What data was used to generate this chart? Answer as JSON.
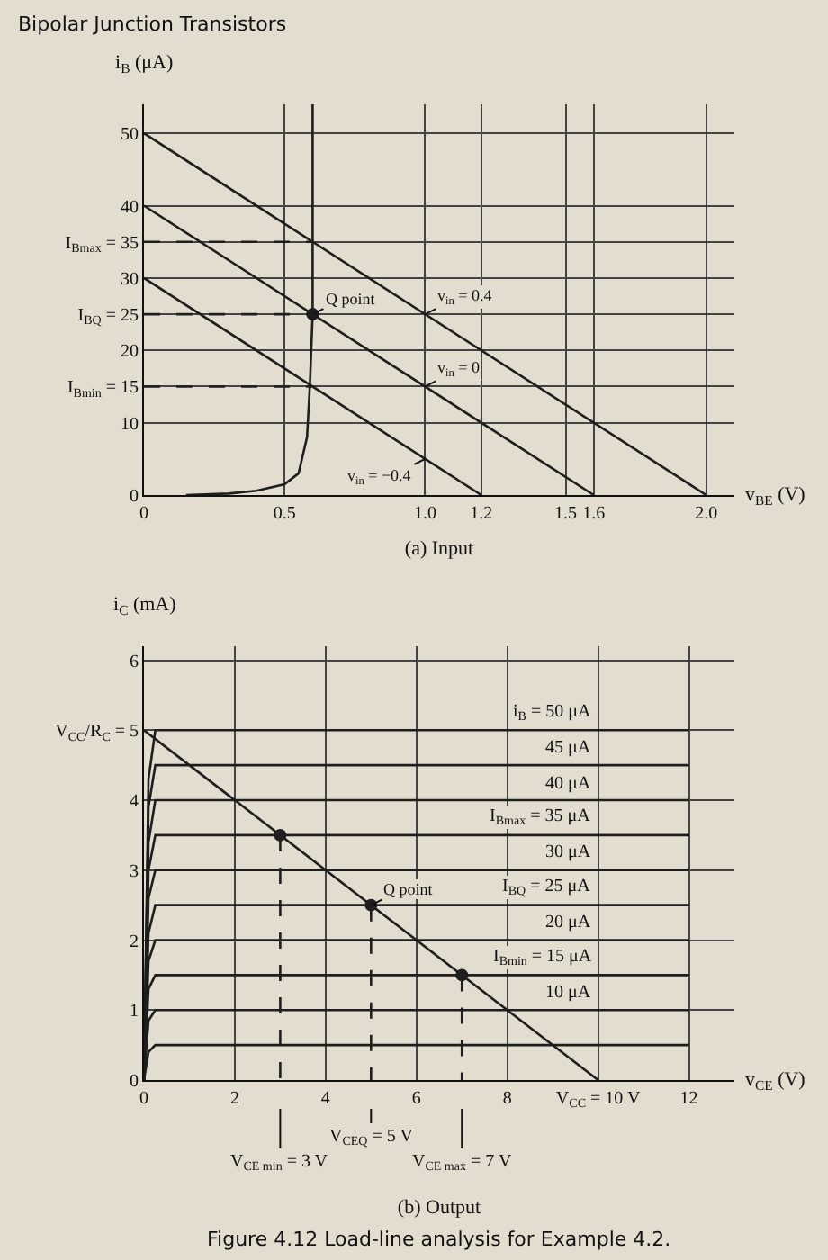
{
  "chart_data": [
    {
      "type": "line",
      "title": "(a) Input",
      "xlabel": "v$_{BE}$ (V)",
      "ylabel": "i$_{B}$ (μA)",
      "xlim": [
        0,
        2.1
      ],
      "ylim": [
        0,
        54
      ],
      "xticks": [
        0,
        0.5,
        {
          "value": 1,
          "label": "1.0"
        },
        1.2,
        1.5,
        1.6,
        {
          "value": 2,
          "label": "2.0"
        }
      ],
      "yticks": [
        0,
        10,
        {
          "value": 15,
          "label": "I$_{Bmin}$ = 15"
        },
        20,
        {
          "value": 25,
          "label": "I$_{BQ}$ = 25"
        },
        30,
        {
          "value": 35,
          "label": "I$_{Bmax}$ = 35"
        },
        40,
        50
      ],
      "grid": true,
      "series": [
        {
          "color": "#1e1e1e",
          "x": [
            0.15,
            0.3,
            0.4,
            0.5,
            0.55,
            0.58,
            0.59,
            0.6,
            0.6
          ],
          "values": [
            0,
            0.2,
            0.6,
            1.5,
            3,
            8,
            15,
            25,
            54
          ]
        },
        {
          "color": "#1e1e1e",
          "x": [
            0,
            2
          ],
          "values": [
            50,
            0
          ]
        },
        {
          "color": "#1e1e1e",
          "x": [
            0,
            1.6
          ],
          "values": [
            40,
            0
          ]
        },
        {
          "color": "#1e1e1e",
          "x": [
            0,
            1.2
          ],
          "values": [
            30,
            0
          ]
        },
        {
          "color": "#1e1e1e",
          "x": [
            0,
            0.6
          ],
          "values": [
            35,
            35
          ],
          "line_style": "dashed"
        },
        {
          "color": "#1e1e1e",
          "x": [
            0,
            0.6
          ],
          "values": [
            25,
            25
          ],
          "line_style": "dashed"
        },
        {
          "color": "#1e1e1e",
          "x": [
            0,
            0.6
          ],
          "values": [
            15,
            15
          ],
          "line_style": "dashed"
        },
        {
          "type": "scatter",
          "color": "#1e1e1e",
          "x": [
            0.6
          ],
          "values": [
            25
          ],
          "marker": "circle"
        }
      ],
      "annotations": [
        "Bipolar Junction Transistors",
        {
          "text": "Q point",
          "x": 0.6,
          "y": 25
        },
        {
          "text": "v$_{in}$ = 0.4",
          "x": 1,
          "y": 25
        },
        {
          "text": "v$_{in}$ = 0",
          "x": 1,
          "y": 15
        },
        {
          "text": "v$_{in}$ = −0.4",
          "x": 1,
          "y": 5
        }
      ]
    },
    {
      "type": "line",
      "title": "(b) Output",
      "xlabel": "v$_{CE}$ (V)",
      "ylabel": "i$_{C}$ (mA)",
      "xlim": [
        0,
        13
      ],
      "ylim": [
        0,
        6.2
      ],
      "xticks": [
        0,
        2,
        4,
        6,
        8,
        {
          "value": 10,
          "label": "V$_{CC}$ = 10 V"
        },
        12
      ],
      "yticks": [
        0,
        1,
        2,
        3,
        4,
        {
          "value": 5,
          "label": "V$_{CC}$/R$_{C}$ = 5"
        },
        6
      ],
      "grid": true,
      "series": [
        {
          "name": "i$_{B}$ = 50 μA",
          "color": "#1e1e1e",
          "x": [
            0,
            0.1,
            0.25,
            10,
            12
          ],
          "values": [
            0,
            4.3,
            5,
            5,
            5
          ]
        },
        {
          "name": "45 μA",
          "color": "#1e1e1e",
          "x": [
            0,
            0.1,
            0.25,
            10,
            12
          ],
          "values": [
            0,
            3.9,
            4.5,
            4.5,
            4.5
          ]
        },
        {
          "name": "40 μA",
          "color": "#1e1e1e",
          "x": [
            0,
            0.1,
            0.25,
            10,
            12
          ],
          "values": [
            0,
            3.4,
            4,
            4,
            4
          ]
        },
        {
          "name": "I$_{Bmax}$ = 35 μA",
          "color": "#1e1e1e",
          "x": [
            0,
            0.1,
            0.25,
            10,
            12
          ],
          "values": [
            0,
            3,
            3.5,
            3.5,
            3.5
          ]
        },
        {
          "name": "30 μA",
          "color": "#1e1e1e",
          "x": [
            0,
            0.1,
            0.25,
            10,
            12
          ],
          "values": [
            0,
            2.6,
            3,
            3,
            3
          ]
        },
        {
          "name": "I$_{BQ}$ = 25 μA",
          "color": "#1e1e1e",
          "x": [
            0,
            0.1,
            0.25,
            10,
            12
          ],
          "values": [
            0,
            2.1,
            2.5,
            2.5,
            2.5
          ]
        },
        {
          "name": "20 μA",
          "color": "#1e1e1e",
          "x": [
            0,
            0.1,
            0.25,
            10,
            12
          ],
          "values": [
            0,
            1.7,
            2,
            2,
            2
          ]
        },
        {
          "name": "I$_{Bmin}$ = 15 μA",
          "color": "#1e1e1e",
          "x": [
            0,
            0.1,
            0.25,
            10,
            12
          ],
          "values": [
            0,
            1.3,
            1.5,
            1.5,
            1.5
          ]
        },
        {
          "name": "10 μA",
          "color": "#1e1e1e",
          "x": [
            0,
            0.1,
            0.25,
            10,
            12
          ],
          "values": [
            0,
            0.85,
            1,
            1,
            1
          ]
        },
        {
          "color": "#1e1e1e",
          "x": [
            0,
            0.1,
            0.25,
            10,
            12
          ],
          "values": [
            0,
            0.4,
            0.5,
            0.5,
            0.5
          ]
        },
        {
          "color": "#1e1e1e",
          "x": [
            0,
            10
          ],
          "values": [
            5,
            0
          ]
        },
        {
          "color": "#1e1e1e",
          "x": [
            3,
            3
          ],
          "values": [
            3.5,
            0
          ],
          "line_style": "dashed"
        },
        {
          "color": "#1e1e1e",
          "x": [
            5,
            5
          ],
          "values": [
            2.5,
            0
          ],
          "line_style": "dashed"
        },
        {
          "color": "#1e1e1e",
          "x": [
            7,
            7
          ],
          "values": [
            1.5,
            0
          ],
          "line_style": "dashed"
        },
        {
          "type": "scatter",
          "color": "#1e1e1e",
          "x": [
            3,
            5,
            7
          ],
          "values": [
            3.5,
            2.5,
            1.5
          ],
          "marker": "circle"
        }
      ],
      "annotations": [
        "Figure 4.12 Load-line analysis for Example 4.2.",
        {
          "text": "Q point",
          "x": 5,
          "y": 2.5
        },
        {
          "text": "V$_{CE min}$ = 3 V",
          "x": 3,
          "y": 0
        },
        {
          "text": "V$_{CEQ}$ = 5 V",
          "x": 5,
          "y": 0
        },
        {
          "text": "V$_{CE max}$ = 7 V",
          "x": 7,
          "y": 0
        }
      ]
    }
  ]
}
